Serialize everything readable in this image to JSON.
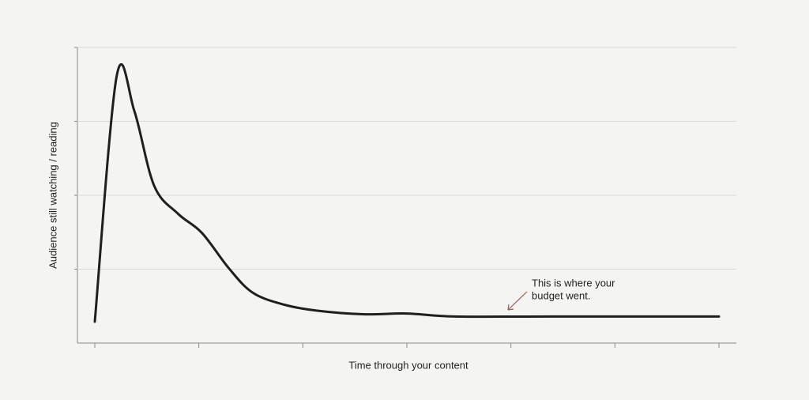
{
  "chart_data": {
    "type": "line",
    "x_label": "Time through your content",
    "y_label": "Audience still watching / reading",
    "annotation_lines": [
      "This is where your",
      "budget went."
    ],
    "annotation_color": "#a65a4c",
    "xlim": [
      0,
      6
    ],
    "xticks": [
      0,
      1,
      2,
      3,
      4,
      5,
      6
    ],
    "ylim": [
      0,
      4
    ],
    "yticks": [
      1,
      2,
      3,
      4
    ],
    "grid": true,
    "tick_labels": false,
    "series": [
      {
        "color": "#1f1f1f",
        "x": [
          0,
          0.21,
          0.38,
          0.57,
          0.8,
          1.03,
          1.29,
          1.52,
          1.82,
          2.13,
          2.58,
          3.0,
          3.46,
          4.4,
          6
        ],
        "values": [
          0.29,
          3.61,
          3.14,
          2.13,
          1.75,
          1.49,
          1.01,
          0.68,
          0.52,
          0.44,
          0.39,
          0.4,
          0.36,
          0.36,
          0.36
        ]
      }
    ]
  }
}
